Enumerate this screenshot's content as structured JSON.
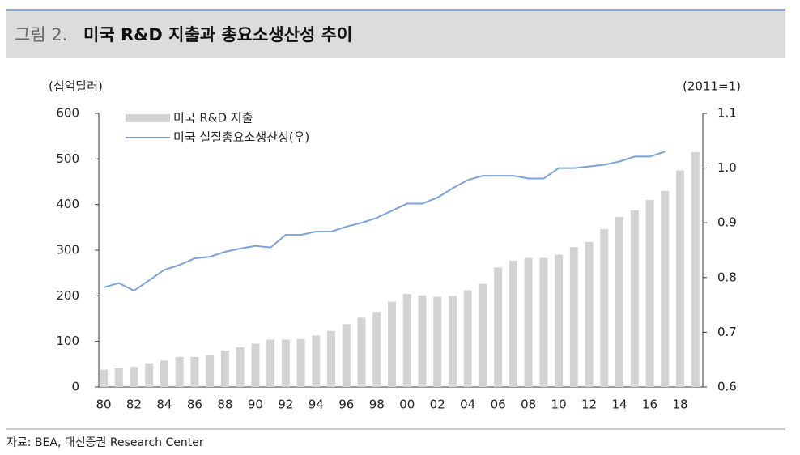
{
  "header": {
    "label": "그림 2.",
    "title": "미국 R&D 지출과 총요소생산성 추이"
  },
  "chart_data": {
    "type": "bar-line",
    "y_axis_label": "(십억달러)",
    "y2_axis_label": "(2011=1)",
    "categories": [
      "80",
      null,
      "82",
      null,
      "84",
      null,
      "86",
      null,
      "88",
      null,
      "90",
      null,
      "92",
      null,
      "94",
      null,
      "96",
      null,
      "98",
      null,
      "00",
      null,
      "02",
      null,
      "04",
      null,
      "06",
      null,
      "08",
      null,
      "10",
      null,
      "12",
      null,
      "14",
      null,
      "16",
      null,
      "18",
      null
    ],
    "series": [
      {
        "name": "미국 R&D 지출",
        "type": "bar",
        "color": "#d3d3d3",
        "values": [
          38,
          41,
          44,
          52,
          58,
          66,
          66,
          70,
          80,
          87,
          95,
          104,
          104,
          105,
          113,
          123,
          138,
          152,
          165,
          187,
          204,
          201,
          198,
          200,
          212,
          226,
          262,
          277,
          283,
          283,
          290,
          307,
          318,
          346,
          373,
          387,
          410,
          430,
          475,
          515
        ]
      },
      {
        "name": "미국 실질총요소생산성(우)",
        "type": "line",
        "axis": "y2",
        "color": "#7ba3d8",
        "values": [
          0.782,
          0.79,
          0.776,
          0.795,
          0.814,
          0.823,
          0.835,
          0.838,
          0.847,
          0.853,
          0.858,
          0.855,
          0.878,
          0.878,
          0.884,
          0.884,
          0.893,
          0.9,
          0.909,
          0.922,
          0.935,
          0.935,
          0.946,
          0.963,
          0.978,
          0.986,
          0.986,
          0.986,
          0.981,
          0.981,
          1.0,
          1.0,
          1.003,
          1.006,
          1.012,
          1.021,
          1.021,
          1.03,
          null,
          null
        ]
      }
    ],
    "ylim": [
      0,
      600
    ],
    "yticks": [
      0,
      100,
      200,
      300,
      400,
      500,
      600
    ],
    "y2lim": [
      0.6,
      1.1
    ],
    "y2ticks": [
      0.6,
      0.7,
      0.8,
      0.9,
      {
        "value": 1.0,
        "label": "1.0"
      },
      1.1
    ]
  },
  "footer": {
    "source": "자료: BEA, 대신증권 Research Center"
  }
}
